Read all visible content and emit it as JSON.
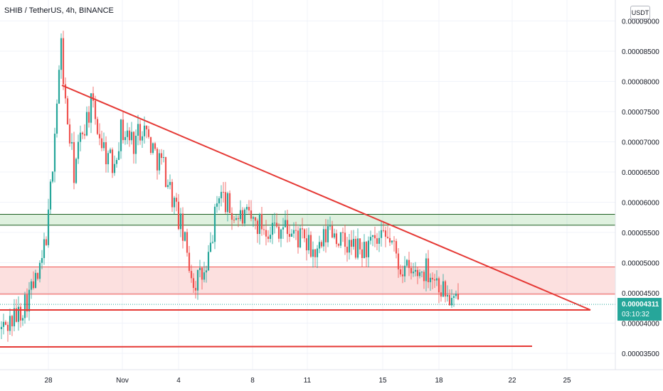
{
  "header": {
    "symbol": "SHIB / TetherUS, 4h, BINANCE",
    "currency_button": "USDT"
  },
  "colors": {
    "up": "#26a69a",
    "down": "#ef5350",
    "trend_line": "#e53935",
    "resistance_zone": "#4caf50",
    "demand_zone": "#ef5350",
    "price_label_bg": "#26a69a"
  },
  "chart_data": {
    "type": "candlestick",
    "symbol": "SHIB / TetherUS",
    "interval": "4h",
    "exchange": "BINANCE",
    "currency": "USDT",
    "ylim": [
      3.25e-05,
      9.2e-05
    ],
    "y_ticks": [
      "0.00009000",
      "0.00008500",
      "0.00008000",
      "0.00007500",
      "0.00007000",
      "0.00006500",
      "0.00006000",
      "0.00005500",
      "0.00005000",
      "0.00004500",
      "0.00004000",
      "0.00003500"
    ],
    "x_ticks": [
      "28",
      "Nov",
      "4",
      "8",
      "11",
      "15",
      "18",
      "22",
      "25"
    ],
    "last_price": "0.00004311",
    "countdown": "03:10:32",
    "zones": [
      {
        "name": "resistance",
        "low": 5.62e-05,
        "high": 5.8e-05
      },
      {
        "name": "demand",
        "low": 4.48e-05,
        "high": 4.93e-05
      }
    ],
    "lines": [
      {
        "name": "descending-trendline",
        "from": {
          "x": "Oct 28",
          "y": 8.05e-05
        },
        "to": {
          "x": "Nov 26",
          "y": 4.23e-05
        }
      },
      {
        "name": "support-line",
        "from": {
          "x": "Oct 23",
          "y": 4.23e-05
        },
        "to": {
          "x": "Nov 26",
          "y": 4.23e-05
        }
      },
      {
        "name": "lower-support-line",
        "from": {
          "x": "Oct 23",
          "y": 3.63e-05
        },
        "to": {
          "x": "Nov 23",
          "y": 3.63e-05
        }
      }
    ],
    "close_path": [
      [
        3.9e-05,
        0
      ],
      [
        4.15e-05,
        8
      ],
      [
        4.55e-05,
        14
      ],
      [
        4.8e-05,
        18
      ],
      [
        5.7e-05,
        22
      ],
      [
        7.2e-05,
        25
      ],
      [
        8.6e-05,
        28
      ],
      [
        7.6e-05,
        30
      ],
      [
        6.5e-05,
        34
      ],
      [
        7.2e-05,
        38
      ],
      [
        7.6e-05,
        42
      ],
      [
        6.9e-05,
        48
      ],
      [
        6.6e-05,
        52
      ],
      [
        7.2e-05,
        56
      ],
      [
        7e-05,
        62
      ],
      [
        7.3e-05,
        66
      ],
      [
        6.8e-05,
        72
      ],
      [
        6.6e-05,
        76
      ],
      [
        5.6e-05,
        84
      ],
      [
        4.7e-05,
        90
      ],
      [
        4.8e-05,
        96
      ],
      [
        6.2e-05,
        102
      ],
      [
        5.8e-05,
        108
      ],
      [
        5.7e-05,
        116
      ],
      [
        5.6e-05,
        124
      ],
      [
        5.6e-05,
        132
      ],
      [
        5.4e-05,
        140
      ],
      [
        5.1e-05,
        148
      ],
      [
        5.6e-05,
        154
      ],
      [
        5.3e-05,
        160
      ],
      [
        5.2e-05,
        168
      ],
      [
        5.3e-05,
        176
      ],
      [
        5.4e-05,
        182
      ],
      [
        5e-05,
        186
      ],
      [
        4.8e-05,
        192
      ],
      [
        4.9e-05,
        200
      ],
      [
        4.6e-05,
        206
      ],
      [
        4.3e-05,
        212
      ],
      [
        4.31e-05,
        214
      ]
    ]
  }
}
